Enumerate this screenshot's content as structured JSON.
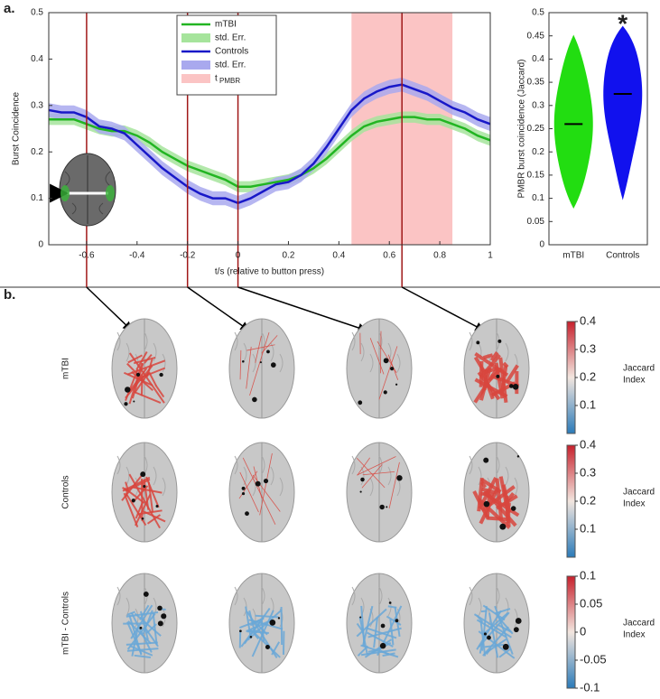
{
  "chart_data": [
    {
      "type": "line",
      "panel_label": "a.",
      "xlabel": "t/s (relative to button press)",
      "ylabel": "Burst Coincidence",
      "x": [
        -0.75,
        -0.7,
        -0.65,
        -0.6,
        -0.55,
        -0.5,
        -0.45,
        -0.4,
        -0.35,
        -0.3,
        -0.25,
        -0.2,
        -0.15,
        -0.1,
        -0.05,
        0,
        0.05,
        0.1,
        0.15,
        0.2,
        0.25,
        0.3,
        0.35,
        0.4,
        0.45,
        0.5,
        0.55,
        0.6,
        0.65,
        0.7,
        0.75,
        0.8,
        0.85,
        0.9,
        0.95,
        1
      ],
      "series": [
        {
          "name": "mTBI",
          "color": "#22b522",
          "error": 0.012,
          "error_name": "std. Err.",
          "error_color": "#a6e49c",
          "values": [
            0.27,
            0.27,
            0.27,
            0.26,
            0.25,
            0.245,
            0.245,
            0.235,
            0.22,
            0.2,
            0.185,
            0.17,
            0.16,
            0.15,
            0.14,
            0.125,
            0.125,
            0.13,
            0.135,
            0.14,
            0.15,
            0.165,
            0.185,
            0.21,
            0.235,
            0.255,
            0.265,
            0.27,
            0.275,
            0.275,
            0.27,
            0.27,
            0.26,
            0.25,
            0.235,
            0.225
          ]
        },
        {
          "name": "Controls",
          "color": "#1818c8",
          "error": 0.015,
          "error_name": "std. Err.",
          "error_color": "#a9a9ee",
          "values": [
            0.29,
            0.285,
            0.285,
            0.275,
            0.255,
            0.25,
            0.24,
            0.215,
            0.19,
            0.165,
            0.145,
            0.125,
            0.11,
            0.1,
            0.1,
            0.09,
            0.1,
            0.115,
            0.13,
            0.135,
            0.15,
            0.175,
            0.21,
            0.25,
            0.29,
            0.315,
            0.33,
            0.34,
            0.345,
            0.335,
            0.325,
            0.31,
            0.295,
            0.285,
            0.27,
            0.26
          ]
        }
      ],
      "markers": [
        -0.6,
        -0.2,
        0,
        0.65
      ],
      "marker_color": "#a01818",
      "shade": {
        "range": [
          0.45,
          0.85
        ],
        "color": "#fbc4c4",
        "name": "t",
        "name_sub": "PMBR"
      },
      "xlim": [
        -0.75,
        1
      ],
      "ylim": [
        0,
        0.5
      ],
      "xticks": [
        -0.6,
        -0.4,
        -0.2,
        0,
        0.2,
        0.4,
        0.6,
        0.8,
        1
      ],
      "yticks": [
        0,
        0.1,
        0.2,
        0.3,
        0.4,
        0.5
      ]
    },
    {
      "type": "violin",
      "ylabel": "PMBR burst coincidence (Jaccard)",
      "annotation": "*",
      "categories": [
        "mTBI",
        "Controls"
      ],
      "colors": [
        "#22dd11",
        "#1111ee"
      ],
      "median": [
        0.26,
        0.325
      ],
      "min": [
        0.08,
        0.1
      ],
      "max": [
        0.45,
        0.47
      ],
      "ylim": [
        0,
        0.5
      ],
      "yticks": [
        0,
        0.05,
        0.1,
        0.15,
        0.2,
        0.25,
        0.3,
        0.35,
        0.4,
        0.45,
        0.5
      ]
    }
  ],
  "panel_b": {
    "label": "b.",
    "rows": [
      {
        "label": "mTBI",
        "edge_color": "#d9463e",
        "colorbar": {
          "lim": [
            0,
            0.4
          ],
          "ticks": [
            0.1,
            0.2,
            0.3,
            0.4
          ],
          "title": "Jaccard",
          "title2": "Index"
        }
      },
      {
        "label": "Controls",
        "edge_color": "#d9463e",
        "colorbar": {
          "lim": [
            0,
            0.4
          ],
          "ticks": [
            0.1,
            0.2,
            0.3,
            0.4
          ],
          "title": "Jaccard",
          "title2": "Index"
        }
      },
      {
        "label": "mTBI - Controls",
        "edge_color": "#6aa8d8",
        "colorbar": {
          "lim": [
            -0.1,
            0.1
          ],
          "ticks": [
            -0.1,
            -0.05,
            0,
            0.05,
            0.1
          ],
          "title": "Jaccard",
          "title2": "Index"
        }
      }
    ]
  }
}
